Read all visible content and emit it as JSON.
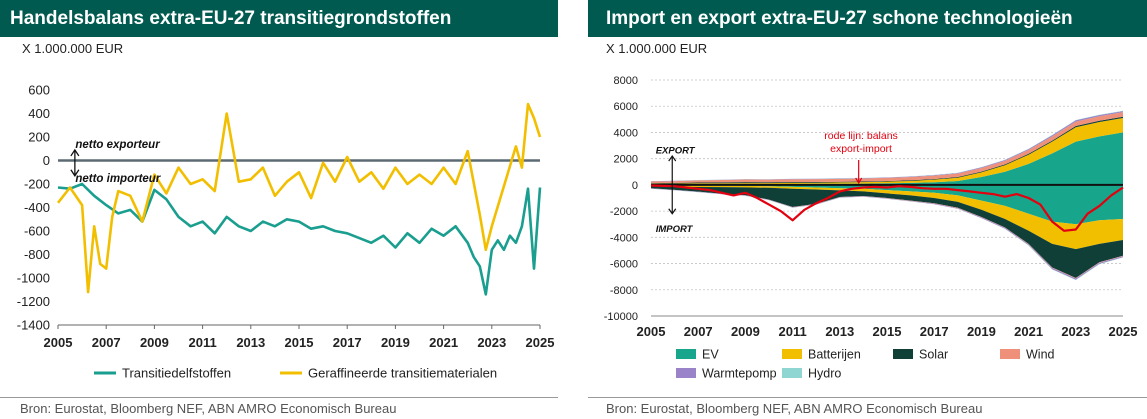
{
  "left": {
    "title": "Handelsbalans extra-EU-27 transitiegrondstoffen",
    "unit": "X 1.000.000 EUR",
    "source": "Bron: Eurostat, Bloomberg NEF, ABN AMRO Economisch Bureau"
  },
  "right": {
    "title": "Import en export extra-EU-27 schone technologieën",
    "unit": "X 1.000.000 EUR",
    "source": "Bron: Eurostat, Bloomberg NEF, ABN AMRO Economisch Bureau"
  },
  "chart_data": [
    {
      "type": "line",
      "title": "Handelsbalans extra-EU-27 transitiegrondstoffen",
      "ylabel": "X 1.000.000 EUR",
      "ylim": [
        -1400,
        600
      ],
      "yticks": [
        600,
        400,
        200,
        0,
        -200,
        -400,
        -600,
        -800,
        -1000,
        -1200,
        -1400
      ],
      "xlim": [
        2005,
        2025
      ],
      "xticks": [
        2005,
        2007,
        2009,
        2011,
        2013,
        2015,
        2017,
        2019,
        2021,
        2023,
        2025
      ],
      "grid": false,
      "legend": "bottom",
      "annotations": [
        {
          "text": "netto exporteur",
          "x": 2006.3,
          "y": 140
        },
        {
          "text": "netto importeur",
          "x": 2006.3,
          "y": -150
        }
      ],
      "series": [
        {
          "name": "Transitiedelfstoffen",
          "color": "#1a9e8f",
          "x": [
            2005.0,
            2005.5,
            2006.0,
            2006.5,
            2007.0,
            2007.5,
            2008.0,
            2008.5,
            2009.0,
            2009.5,
            2010.0,
            2010.5,
            2011.0,
            2011.5,
            2012.0,
            2012.5,
            2013.0,
            2013.5,
            2014.0,
            2014.5,
            2015.0,
            2015.5,
            2016.0,
            2016.5,
            2017.0,
            2017.5,
            2018.0,
            2018.5,
            2019.0,
            2019.5,
            2020.0,
            2020.5,
            2021.0,
            2021.5,
            2022.0,
            2022.25,
            2022.5,
            2022.75,
            2023.0,
            2023.25,
            2023.5,
            2023.75,
            2024.0,
            2024.25,
            2024.5,
            2024.75,
            2025.0
          ],
          "values": [
            -230,
            -240,
            -200,
            -300,
            -380,
            -450,
            -420,
            -520,
            -250,
            -330,
            -480,
            -560,
            -520,
            -620,
            -480,
            -560,
            -600,
            -520,
            -560,
            -500,
            -520,
            -580,
            -560,
            -600,
            -620,
            -660,
            -700,
            -640,
            -740,
            -620,
            -700,
            -580,
            -640,
            -560,
            -700,
            -820,
            -900,
            -1140,
            -760,
            -680,
            -760,
            -640,
            -700,
            -560,
            -240,
            -920,
            -230
          ]
        },
        {
          "name": "Geraffineerde transitiematerialen",
          "color": "#f2bf00",
          "x": [
            2005.0,
            2005.5,
            2006.0,
            2006.25,
            2006.5,
            2006.75,
            2007.0,
            2007.25,
            2007.5,
            2008.0,
            2008.5,
            2009.0,
            2009.5,
            2010.0,
            2010.5,
            2011.0,
            2011.5,
            2012.0,
            2012.5,
            2013.0,
            2013.5,
            2014.0,
            2014.5,
            2015.0,
            2015.5,
            2016.0,
            2016.5,
            2017.0,
            2017.5,
            2018.0,
            2018.5,
            2019.0,
            2019.5,
            2020.0,
            2020.5,
            2021.0,
            2021.5,
            2022.0,
            2022.5,
            2022.75,
            2023.0,
            2023.5,
            2024.0,
            2024.25,
            2024.5,
            2024.75,
            2025.0
          ],
          "values": [
            -360,
            -230,
            -380,
            -1120,
            -560,
            -880,
            -920,
            -480,
            -260,
            -300,
            -520,
            -120,
            -280,
            -60,
            -200,
            -160,
            -260,
            400,
            -180,
            -160,
            -60,
            -300,
            -180,
            -100,
            -320,
            -20,
            -180,
            30,
            -180,
            -100,
            -240,
            -60,
            -200,
            -120,
            -200,
            -60,
            -200,
            80,
            -460,
            -760,
            -560,
            -220,
            120,
            -60,
            480,
            360,
            200
          ]
        }
      ]
    },
    {
      "type": "area",
      "stacked": true,
      "title": "Import en export extra-EU-27 schone technologieën",
      "ylabel": "X 1.000.000 EUR",
      "ylim": [
        -10000,
        8000
      ],
      "yticks": [
        8000,
        6000,
        4000,
        2000,
        0,
        -2000,
        -4000,
        -6000,
        -8000,
        -10000
      ],
      "xlim": [
        2005,
        2025
      ],
      "xticks": [
        2005,
        2007,
        2009,
        2011,
        2013,
        2015,
        2017,
        2019,
        2021,
        2023,
        2025
      ],
      "grid": true,
      "legend": "bottom",
      "annotations": [
        {
          "text": "EXPORT",
          "x": 2006.0,
          "y": 2700
        },
        {
          "text": "IMPORT",
          "x": 2006.0,
          "y": -3300
        },
        {
          "text": "rode lijn: balans export-import",
          "x": 2013.9,
          "y": 2700
        }
      ],
      "x": [
        2005,
        2006,
        2007,
        2008,
        2009,
        2010,
        2011,
        2012,
        2013,
        2014,
        2015,
        2016,
        2017,
        2018,
        2019,
        2020,
        2021,
        2022,
        2023,
        2024,
        2025
      ],
      "series": [
        {
          "name": "EV",
          "color": "#17a68c",
          "export": [
            40,
            40,
            50,
            50,
            60,
            60,
            70,
            80,
            90,
            100,
            120,
            150,
            200,
            300,
            600,
            1000,
            1600,
            2400,
            3300,
            3700,
            4000
          ],
          "import": [
            -30,
            -40,
            -60,
            -70,
            -80,
            -100,
            -150,
            -200,
            -250,
            -300,
            -400,
            -500,
            -600,
            -800,
            -1200,
            -1600,
            -2200,
            -2800,
            -3000,
            -2700,
            -2600
          ]
        },
        {
          "name": "Batterijen",
          "color": "#f2bf00",
          "export": [
            60,
            60,
            70,
            70,
            80,
            80,
            90,
            90,
            100,
            110,
            130,
            150,
            200,
            250,
            350,
            500,
            700,
            900,
            1100,
            1100,
            1100
          ],
          "import": [
            -80,
            -90,
            -100,
            -100,
            -110,
            -120,
            -140,
            -150,
            -170,
            -200,
            -250,
            -300,
            -400,
            -500,
            -700,
            -1000,
            -1300,
            -1700,
            -1900,
            -1800,
            -1600
          ]
        },
        {
          "name": "Solar",
          "color": "#103f38",
          "export": [
            40,
            50,
            60,
            70,
            70,
            60,
            60,
            50,
            50,
            50,
            50,
            50,
            50,
            50,
            60,
            60,
            70,
            80,
            90,
            90,
            90
          ],
          "import": [
            -150,
            -250,
            -350,
            -500,
            -600,
            -900,
            -1400,
            -1100,
            -500,
            -350,
            -350,
            -400,
            -400,
            -450,
            -550,
            -650,
            -1000,
            -1800,
            -2200,
            -1400,
            -1200
          ]
        },
        {
          "name": "Wind",
          "color": "#ef917a",
          "export": [
            120,
            140,
            160,
            180,
            200,
            200,
            210,
            220,
            220,
            230,
            240,
            250,
            260,
            270,
            280,
            280,
            300,
            320,
            340,
            350,
            360
          ],
          "import": [
            -10,
            -10,
            -20,
            -20,
            -20,
            -20,
            -20,
            -20,
            -20,
            -20,
            -30,
            -30,
            -30,
            -30,
            -30,
            -30,
            -40,
            -40,
            -40,
            -40,
            -40
          ]
        },
        {
          "name": "Warmtepomp",
          "color": "#9a83c8",
          "export": [
            20,
            20,
            20,
            20,
            20,
            20,
            30,
            30,
            30,
            30,
            30,
            40,
            40,
            40,
            50,
            60,
            70,
            90,
            100,
            90,
            80
          ],
          "import": [
            -20,
            -20,
            -20,
            -20,
            -20,
            -20,
            -20,
            -30,
            -30,
            -30,
            -30,
            -30,
            -40,
            -40,
            -50,
            -60,
            -70,
            -90,
            -100,
            -90,
            -80
          ]
        },
        {
          "name": "Hydro",
          "color": "#8fd6d2",
          "export": [
            10,
            10,
            10,
            10,
            10,
            10,
            10,
            10,
            10,
            10,
            10,
            10,
            10,
            10,
            20,
            20,
            20,
            20,
            20,
            20,
            20
          ],
          "import": [
            -10,
            -10,
            -10,
            -10,
            -10,
            -10,
            -10,
            -10,
            -10,
            -10,
            -10,
            -10,
            -10,
            -10,
            -20,
            -20,
            -20,
            -20,
            -20,
            -20,
            -20
          ]
        }
      ],
      "balance": {
        "name": "balans export-import",
        "color": "#e3000f",
        "x": [
          2005,
          2005.5,
          2006,
          2006.5,
          2007,
          2007.5,
          2008,
          2008.5,
          2009,
          2009.5,
          2010,
          2010.5,
          2011,
          2011.5,
          2012,
          2012.5,
          2013,
          2013.5,
          2014,
          2014.5,
          2015,
          2015.5,
          2016,
          2016.5,
          2017,
          2017.5,
          2018,
          2018.5,
          2019,
          2019.5,
          2020,
          2020.5,
          2021,
          2021.5,
          2022,
          2022.5,
          2023,
          2023.5,
          2024,
          2024.5,
          2025
        ],
        "values": [
          -50,
          -80,
          -100,
          -200,
          -300,
          -400,
          -600,
          -800,
          -600,
          -1000,
          -1500,
          -2000,
          -2700,
          -1900,
          -1400,
          -1000,
          -500,
          -300,
          -200,
          -150,
          -200,
          -100,
          -150,
          -250,
          -300,
          -300,
          -400,
          -500,
          -600,
          -700,
          -900,
          -700,
          -1000,
          -1500,
          -2800,
          -3500,
          -3400,
          -2200,
          -1600,
          -800,
          -200
        ]
      }
    }
  ]
}
